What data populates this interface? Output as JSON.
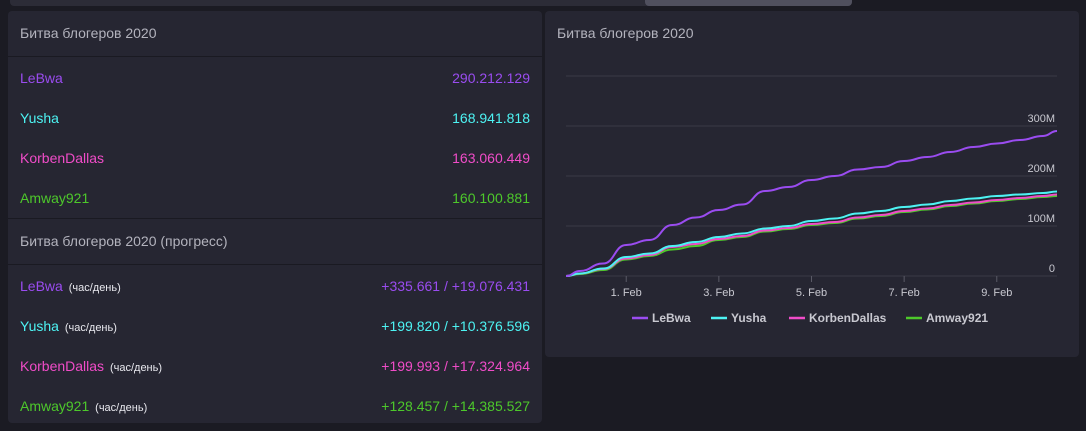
{
  "totals": {
    "title": "Битва блогеров 2020",
    "rows": [
      {
        "name": "LeBwa",
        "value": "290.212.129",
        "color": "#9a4cf0"
      },
      {
        "name": "Yusha",
        "value": "168.941.818",
        "color": "#4df3f3"
      },
      {
        "name": "KorbenDallas",
        "value": "163.060.449",
        "color": "#f04cc8"
      },
      {
        "name": "Amway921",
        "value": "160.100.881",
        "color": "#4dc82b"
      }
    ]
  },
  "progress": {
    "title": "Битва блогеров 2020 (прогресс)",
    "suffix": "(час/день)",
    "rows": [
      {
        "name": "LeBwa",
        "value": "+335.661 / +19.076.431",
        "color": "#9a4cf0"
      },
      {
        "name": "Yusha",
        "value": "+199.820 / +10.376.596",
        "color": "#4df3f3"
      },
      {
        "name": "KorbenDallas",
        "value": "+199.993 / +17.324.964",
        "color": "#f04cc8"
      },
      {
        "name": "Amway921",
        "value": "+128.457 / +14.385.527",
        "color": "#4dc82b"
      }
    ]
  },
  "chart_data": {
    "type": "line",
    "title": "Битва блогеров 2020",
    "xlabel": "",
    "ylabel": "",
    "x_tick_labels": [
      "1. Feb",
      "3. Feb",
      "5. Feb",
      "7. Feb",
      "9. Feb"
    ],
    "x_ticks": [
      1,
      3,
      5,
      7,
      9
    ],
    "y_tick_labels": [
      "0",
      "100M",
      "200M",
      "300M"
    ],
    "y_ticks": [
      0,
      100,
      200,
      300
    ],
    "xlim": [
      -0.3,
      10.3
    ],
    "ylim": [
      0,
      400
    ],
    "y_units": "million",
    "grid": true,
    "legend": "bottom",
    "x": [
      -0.3,
      0.0,
      0.5,
      1.0,
      1.5,
      2.0,
      2.5,
      3.0,
      3.5,
      4.0,
      4.5,
      5.0,
      5.5,
      6.0,
      6.5,
      7.0,
      7.5,
      8.0,
      8.5,
      9.0,
      9.5,
      10.0,
      10.3
    ],
    "series": [
      {
        "name": "LeBwa",
        "color": "#9a4cf0",
        "values": [
          0,
          10,
          25,
          62,
          72,
          102,
          117,
          132,
          143,
          170,
          178,
          192,
          200,
          213,
          218,
          230,
          238,
          248,
          258,
          265,
          272,
          280,
          290
        ]
      },
      {
        "name": "Yusha",
        "color": "#4df3f3",
        "values": [
          0,
          5,
          15,
          38,
          45,
          60,
          68,
          78,
          85,
          95,
          100,
          110,
          115,
          125,
          130,
          138,
          143,
          150,
          155,
          160,
          163,
          166,
          169
        ]
      },
      {
        "name": "KorbenDallas",
        "color": "#f04cc8",
        "values": [
          0,
          5,
          14,
          35,
          42,
          58,
          64,
          74,
          80,
          91,
          96,
          104,
          108,
          117,
          122,
          130,
          135,
          142,
          147,
          152,
          156,
          160,
          163
        ]
      },
      {
        "name": "Amway921",
        "color": "#4dc82b",
        "values": [
          0,
          4,
          12,
          33,
          40,
          53,
          60,
          72,
          78,
          89,
          94,
          102,
          106,
          115,
          120,
          128,
          133,
          140,
          145,
          150,
          154,
          158,
          160
        ]
      }
    ]
  }
}
